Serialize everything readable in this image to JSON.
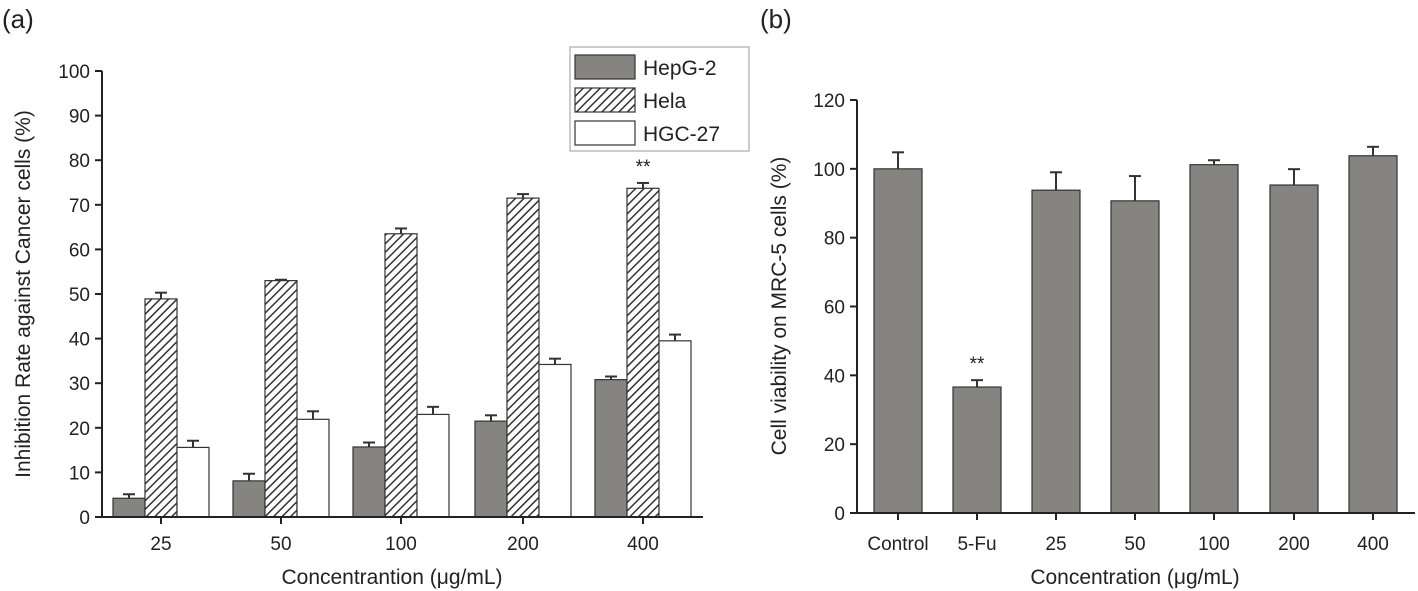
{
  "colors": {
    "bar": "#868481",
    "edge": "#333333"
  },
  "chart_data": [
    {
      "panel": "(a)",
      "type": "bar",
      "xlabel": "Concentrantion (μg/mL)",
      "ylabel": "Inhibition Rate against Cancer cells (%)",
      "categories": [
        "25",
        "50",
        "100",
        "200",
        "400"
      ],
      "ylim": [
        0,
        100
      ],
      "yticks": [
        "0",
        "10",
        "20",
        "30",
        "40",
        "50",
        "60",
        "70",
        "80",
        "90",
        "100"
      ],
      "legend_position": "top-right",
      "series": [
        {
          "name": "HepG-2",
          "fill": "solid",
          "values": [
            4.2,
            8.1,
            15.7,
            21.5,
            30.8
          ],
          "errors": [
            0.9,
            1.6,
            1.0,
            1.3,
            0.7
          ]
        },
        {
          "name": "Hela",
          "fill": "hatched",
          "values": [
            48.9,
            53.0,
            63.5,
            71.5,
            73.7
          ],
          "errors": [
            1.4,
            0.2,
            1.2,
            0.9,
            1.2
          ]
        },
        {
          "name": "HGC-27",
          "fill": "white",
          "values": [
            15.6,
            21.9,
            23.0,
            34.2,
            39.5
          ],
          "errors": [
            1.5,
            1.8,
            1.7,
            1.3,
            1.4
          ]
        }
      ],
      "annotations": [
        {
          "text": "**",
          "category": "400",
          "series": "Hela"
        }
      ]
    },
    {
      "panel": "(b)",
      "type": "bar",
      "xlabel": "Concentration (μg/mL)",
      "ylabel": "Cell viability on MRC-5 cells (%)",
      "categories": [
        "Control",
        "5-Fu",
        "25",
        "50",
        "100",
        "200",
        "400"
      ],
      "ylim": [
        0,
        120
      ],
      "yticks": [
        "0",
        "20",
        "40",
        "60",
        "80",
        "100",
        "120"
      ],
      "values": [
        100,
        36.6,
        93.8,
        90.7,
        101.2,
        95.3,
        103.8
      ],
      "errors": [
        4.8,
        2.0,
        5.2,
        7.2,
        1.3,
        4.6,
        2.6
      ],
      "annotations": [
        {
          "text": "**",
          "category": "5-Fu"
        }
      ]
    }
  ]
}
